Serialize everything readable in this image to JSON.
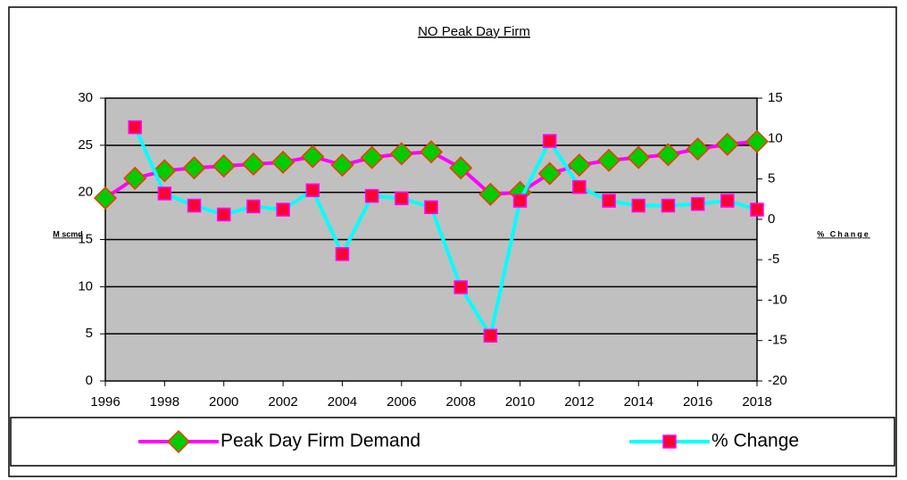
{
  "chart_data": {
    "type": "line",
    "title": "NO Peak Day Firm",
    "y_label": "M scmd",
    "y2_label": "% Change",
    "x": [
      1996,
      1997,
      1998,
      1999,
      2000,
      2001,
      2002,
      2003,
      2004,
      2005,
      2006,
      2007,
      2008,
      2009,
      2010,
      2011,
      2012,
      2013,
      2014,
      2015,
      2016,
      2017,
      2018
    ],
    "xlim": [
      1996,
      2018
    ],
    "xticks": [
      1996,
      1998,
      2000,
      2002,
      2004,
      2006,
      2008,
      2010,
      2012,
      2014,
      2016,
      2018
    ],
    "ylim": [
      0,
      30
    ],
    "yticks": [
      0,
      5,
      10,
      15,
      20,
      25,
      30
    ],
    "y2lim": [
      -20,
      15
    ],
    "y2ticks": [
      -20,
      -15,
      -10,
      -5,
      0,
      5,
      10,
      15
    ],
    "grid": true,
    "legend": "bottom",
    "series": [
      {
        "name": "Peak Day Firm Demand",
        "color": "#ff00ff",
        "marker": "diamond",
        "marker_color": "#00cc00",
        "marker_edge": "#ff3300",
        "values": [
          19.4,
          21.5,
          22.3,
          22.6,
          22.8,
          23.0,
          23.2,
          23.8,
          22.9,
          23.7,
          24.1,
          24.3,
          22.6,
          19.8,
          20.0,
          22.0,
          22.9,
          23.4,
          23.7,
          24.0,
          24.6,
          25.1,
          25.4
        ]
      },
      {
        "name": "% Change",
        "color": "#00ffff",
        "axis": "y2",
        "marker": "square",
        "marker_color": "#ff0033",
        "marker_edge": "#ff00ff",
        "values": [
          null,
          11.4,
          3.2,
          1.7,
          0.6,
          1.6,
          1.2,
          3.6,
          -4.3,
          2.9,
          2.6,
          1.5,
          -8.4,
          -14.4,
          2.3,
          9.7,
          4.0,
          2.3,
          1.7,
          1.7,
          1.9,
          2.3,
          1.2
        ]
      }
    ]
  }
}
